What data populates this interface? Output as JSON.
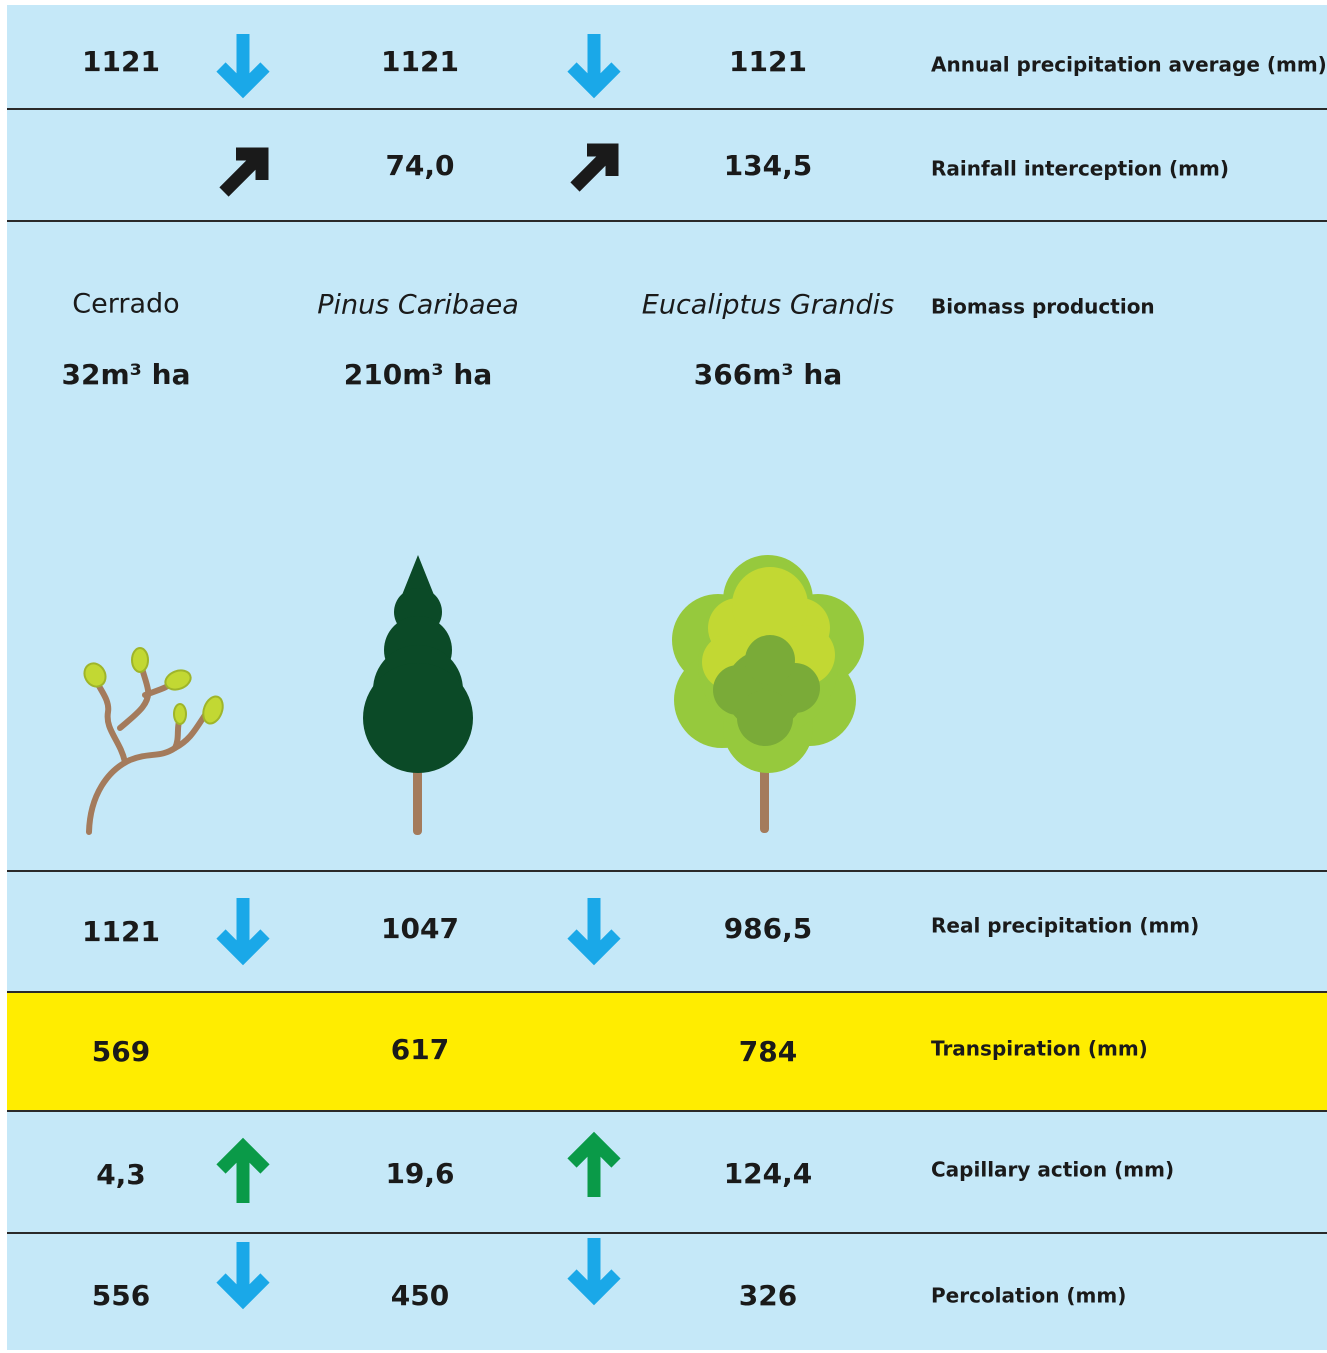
{
  "rows": [
    {
      "label": "Annual precipitation average (mm)",
      "values": [
        "1121",
        "1121",
        "1121"
      ]
    },
    {
      "label": "Rainfall interception (mm)",
      "values": [
        "74,0",
        "134,5"
      ]
    }
  ],
  "biomass": {
    "label": "Biomass production",
    "species": [
      {
        "name": "Cerrado",
        "volume": "32m³ ha"
      },
      {
        "name": "Pinus Caribaea",
        "volume": "210m³ ha"
      },
      {
        "name": "Eucaliptus Grandis",
        "volume": "366m³ ha"
      }
    ]
  },
  "bottom_rows": [
    {
      "label": "Real precipitation (mm)",
      "values": [
        "1121",
        "1047",
        "986,5"
      ]
    },
    {
      "label": "Transpiration (mm)",
      "values": [
        "569",
        "617",
        "784"
      ]
    },
    {
      "label": "Capillary action (mm)",
      "values": [
        "4,3",
        "19,6",
        "124,4"
      ]
    },
    {
      "label": "Percolation (mm)",
      "values": [
        "556",
        "450",
        "326"
      ]
    }
  ]
}
